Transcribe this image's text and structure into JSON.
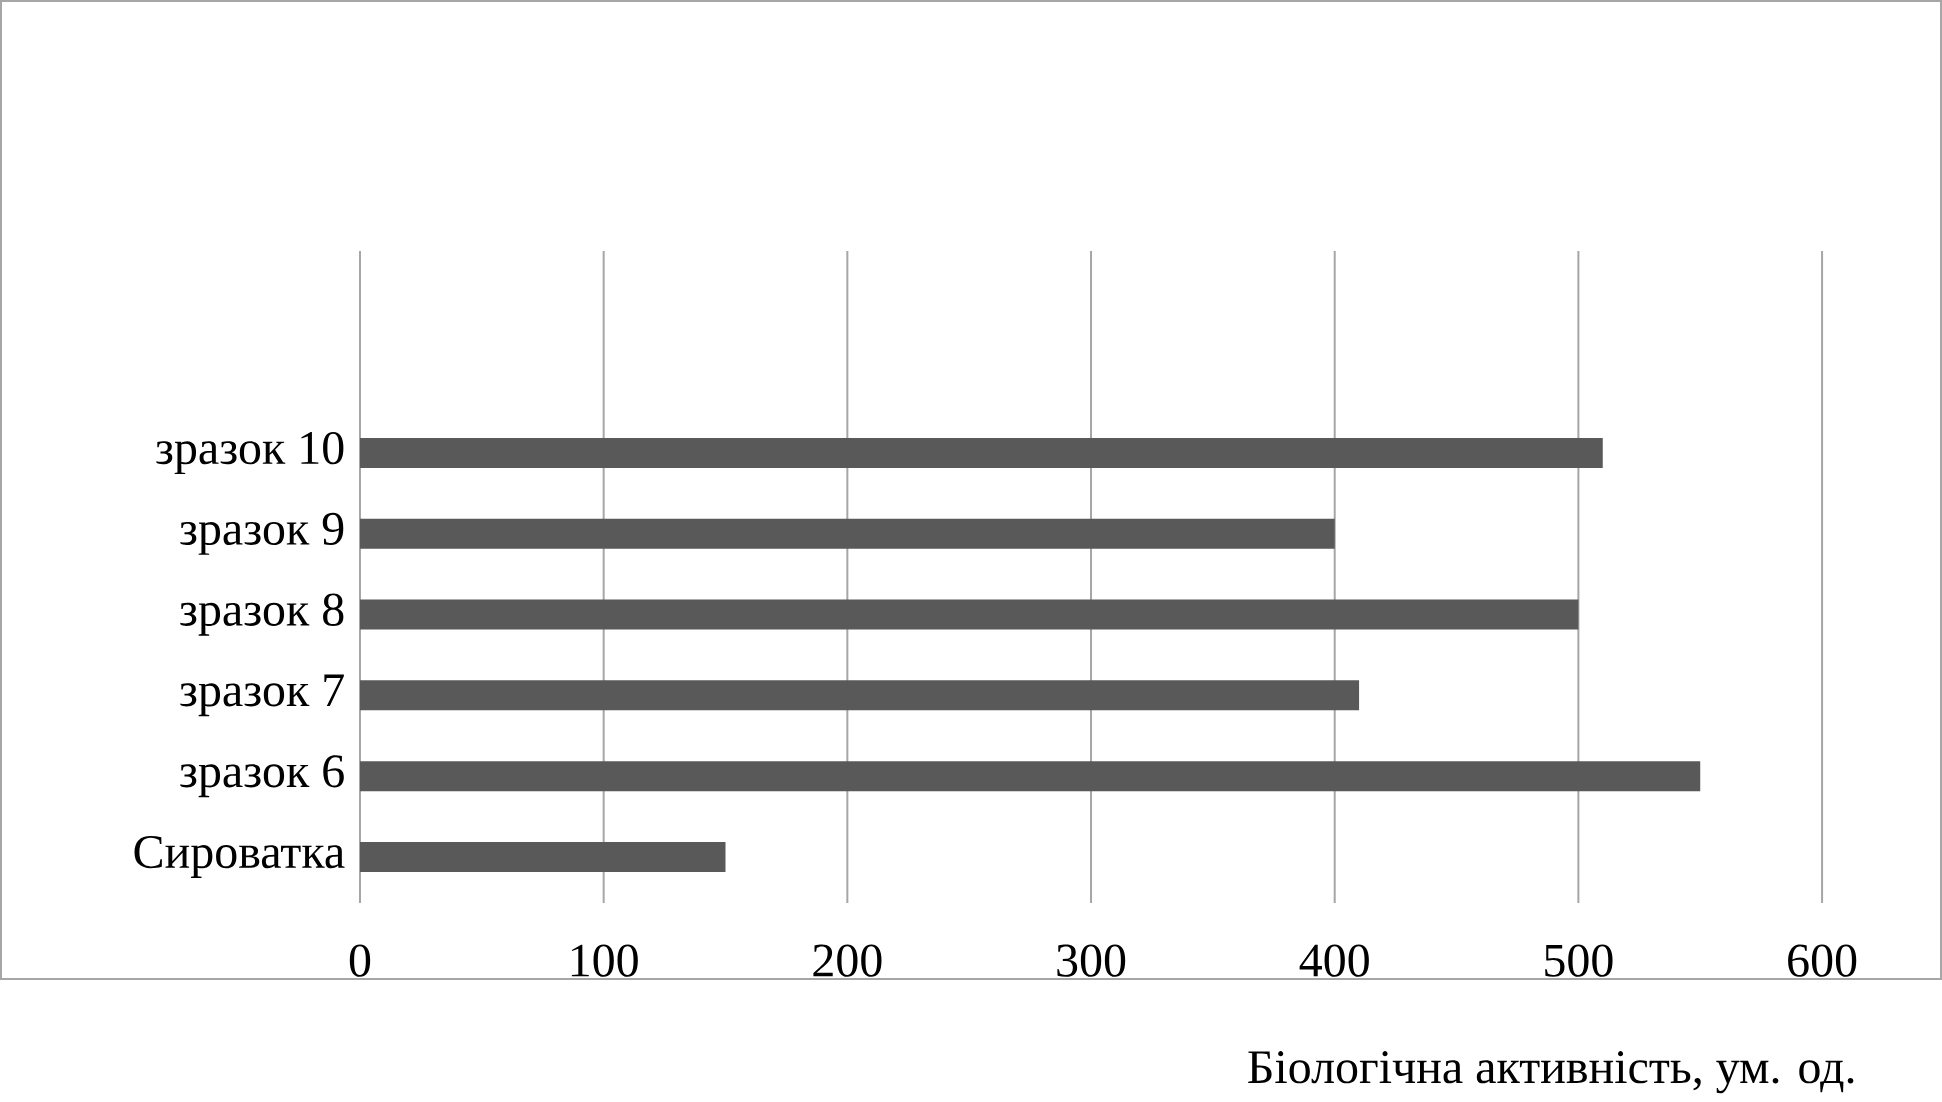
{
  "chart_data": {
    "type": "bar",
    "orientation": "horizontal",
    "xlabel": "Біологічна активність, ум. од.",
    "categories": [
      "зразок 10",
      "зразок 9",
      "зразок 8",
      "зразок 7",
      "зразок 6",
      "Сироватка"
    ],
    "values": [
      510,
      400,
      500,
      410,
      550,
      150
    ],
    "color": "#595959",
    "xlim": [
      0,
      600
    ],
    "xticks": [
      0,
      100,
      200,
      300,
      400,
      500,
      600
    ],
    "grid": "x"
  }
}
